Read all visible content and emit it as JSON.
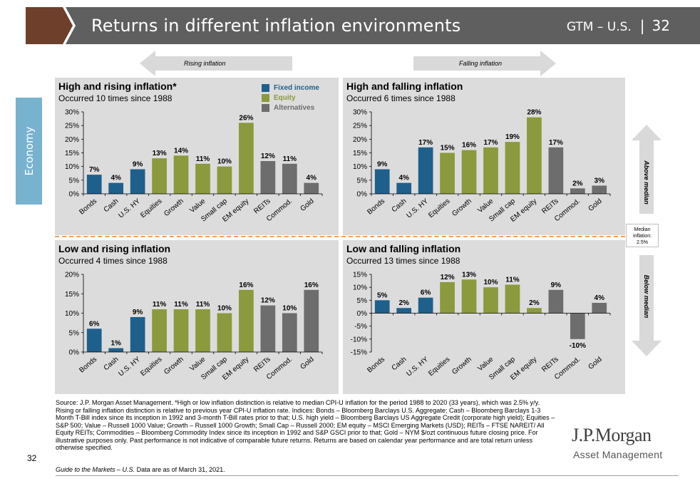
{
  "header": {
    "title": "Returns in different inflation environments",
    "gtm": "GTM – U.S.",
    "separator": "|",
    "page": "32"
  },
  "sidebar": {
    "tab": "Economy"
  },
  "arrows": {
    "rising": "Rising inflation",
    "falling": "Falling inflation",
    "above": "Above median",
    "below": "Below median"
  },
  "median": {
    "line1": "Median",
    "line2": "inflation:",
    "line3": "2.5%"
  },
  "legend": [
    {
      "label": "Fixed income",
      "color": "#1f5f8b"
    },
    {
      "label": "Equity",
      "color": "#8a9a3c"
    },
    {
      "label": "Alternatives",
      "color": "#6d6d6d"
    }
  ],
  "colors": {
    "fixed_income": "#1f5f8b",
    "equity": "#8a9a3c",
    "alternatives": "#6d6d6d",
    "banner": "#5f5f5f",
    "banner_accent": "#6e3f2a",
    "economy_tab": "#77b2cf"
  },
  "chart_data": [
    {
      "type": "bar",
      "title": "High and rising inflation*",
      "subtitle": "Occurred 10 times since 1988",
      "categories": [
        "Bonds",
        "Cash",
        "U.S. HY",
        "Equities",
        "Growth",
        "Value",
        "Small cap",
        "EM equity",
        "REITs",
        "Commod.",
        "Gold"
      ],
      "groups": [
        "fi",
        "fi",
        "fi",
        "eq",
        "eq",
        "eq",
        "eq",
        "eq",
        "alt",
        "alt",
        "alt"
      ],
      "values": [
        7,
        4,
        9,
        13,
        14,
        11,
        10,
        26,
        12,
        11,
        4
      ],
      "ylim": [
        0,
        30
      ],
      "yticks": [
        0,
        5,
        10,
        15,
        20,
        25,
        30
      ],
      "unit": "%"
    },
    {
      "type": "bar",
      "title": "High and falling inflation",
      "subtitle": "Occurred 6 times since 1988",
      "categories": [
        "Bonds",
        "Cash",
        "U.S. HY",
        "Equities",
        "Growth",
        "Value",
        "Small cap",
        "EM equity",
        "REITs",
        "Commod.",
        "Gold"
      ],
      "groups": [
        "fi",
        "fi",
        "fi",
        "eq",
        "eq",
        "eq",
        "eq",
        "eq",
        "alt",
        "alt",
        "alt"
      ],
      "values": [
        9,
        4,
        17,
        15,
        16,
        17,
        19,
        28,
        17,
        2,
        3
      ],
      "ylim": [
        0,
        30
      ],
      "yticks": [
        0,
        5,
        10,
        15,
        20,
        25,
        30
      ],
      "unit": "%"
    },
    {
      "type": "bar",
      "title": "Low and rising inflation",
      "subtitle": "Occurred 4 times since 1988",
      "categories": [
        "Bonds",
        "Cash",
        "U.S. HY",
        "Equities",
        "Growth",
        "Value",
        "Small cap",
        "EM equity",
        "REITs",
        "Commod.",
        "Gold"
      ],
      "groups": [
        "fi",
        "fi",
        "fi",
        "eq",
        "eq",
        "eq",
        "eq",
        "eq",
        "alt",
        "alt",
        "alt"
      ],
      "values": [
        6,
        1,
        9,
        11,
        11,
        11,
        10,
        16,
        12,
        10,
        16
      ],
      "ylim": [
        0,
        20
      ],
      "yticks": [
        0,
        5,
        10,
        15,
        20
      ],
      "unit": "%"
    },
    {
      "type": "bar",
      "title": "Low and falling inflation",
      "subtitle": "Occurred 13 times since 1988",
      "categories": [
        "Bonds",
        "Cash",
        "U.S. HY",
        "Equities",
        "Growth",
        "Value",
        "Small cap",
        "EM equity",
        "REITs",
        "Commod.",
        "Gold"
      ],
      "groups": [
        "fi",
        "fi",
        "fi",
        "eq",
        "eq",
        "eq",
        "eq",
        "eq",
        "alt",
        "alt",
        "alt"
      ],
      "values": [
        5,
        2,
        6,
        12,
        13,
        10,
        11,
        2,
        9,
        -10,
        4
      ],
      "ylim": [
        -15,
        15
      ],
      "yticks": [
        -15,
        -10,
        -5,
        0,
        5,
        10,
        15
      ],
      "unit": "%"
    }
  ],
  "footer": {
    "source": "Source: J.P. Morgan Asset Management. *High or low inflation distinction is relative to median CPI-U inflation for the period 1988 to 2020 (33 years), which was 2.5% y/y. Rising or falling inflation distinction is relative to previous year CPI-U inflation rate. Indices: Bonds – Bloomberg Barclays U.S. Aggregate; Cash – Bloomberg Barclays 1-3 Month T-Bill index since its inception in 1992 and 3-month T-Bill rates prior to that; U.S. high yield – Bloomberg Barclays US Aggregate Credit (corporate high yield); Equities – S&P 500; Value – Russell 1000 Value; Growth – Russell 1000 Growth; Small Cap – Russell 2000; EM equity – MSCI Emerging Markets (USD); REITs – FTSE NAREIT/ All Equity REITs; Commodities – Bloomberg Commodity Index since its inception in 1992 and S&P GSCI prior to that; Gold – NYM $/ozt continuous future closing price. For illustrative purposes only. Past performance is not indicative of comparable future returns. Returns are based on calendar year performance and are total return unless otherwise specified.",
    "guide_italic": "Guide to the Markets – U.S.",
    "guide_rest": " Data are as of March 31, 2021.",
    "page_number": "32",
    "logo": "J.P.Morgan",
    "logo_sub": "Asset Management"
  }
}
